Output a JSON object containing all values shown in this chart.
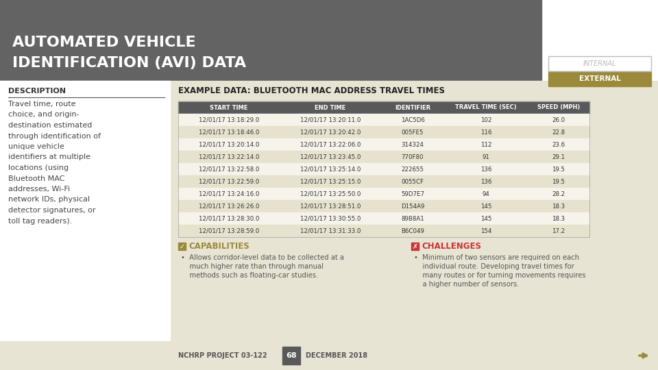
{
  "title_line1": "AUTOMATED VEHICLE",
  "title_line2": "IDENTIFICATION (AVI) DATA",
  "title_bg": "#636363",
  "title_fg": "#ffffff",
  "internal_label": "INTERNAL",
  "external_label": "EXTERNAL",
  "internal_bg": "#ffffff",
  "internal_fg": "#aaaaaa",
  "internal_border": "#cccccc",
  "external_bg": "#9a8a3a",
  "external_fg": "#ffffff",
  "content_bg": "#e8e4d4",
  "desc_bg": "#ffffff",
  "desc_title": "DESCRIPTION",
  "desc_title_color": "#333333",
  "desc_text_color": "#444444",
  "example_title": "EXAMPLE DATA: BLUETOOTH MAC ADDRESS TRAVEL TIMES",
  "table_header": [
    "START TIME",
    "END TIME",
    "IDENTIFIER",
    "TRAVEL TIME (SEC)",
    "SPEED (MPH)"
  ],
  "table_header_bg": "#595959",
  "table_header_fg": "#ffffff",
  "table_rows": [
    [
      "12/01/17 13:18:29.0",
      "12/01/17 13:20:11.0",
      "1AC5D6",
      "102",
      "26.0"
    ],
    [
      "12/01/17 13:18:46.0",
      "12/01/17 13:20:42.0",
      "005FE5",
      "116",
      "22.8"
    ],
    [
      "12/01/17 13:20:14.0",
      "12/01/17 13:22:06.0",
      "314324",
      "112",
      "23.6"
    ],
    [
      "12/01/17 13:22:14.0",
      "12/01/17 13:23:45.0",
      "770F80",
      "91",
      "29.1"
    ],
    [
      "12/01/17 13:22:58.0",
      "12/01/17 13:25:14.0",
      "222655",
      "136",
      "19.5"
    ],
    [
      "12/01/17 13:22:59.0",
      "12/01/17 13:25:15.0",
      "0055CF",
      "136",
      "19.5"
    ],
    [
      "12/01/17 13:24:16.0",
      "12/01/17 13:25:50.0",
      "59D7E7",
      "94",
      "28.2"
    ],
    [
      "12/01/17 13:26:26.0",
      "12/01/17 13:28:51.0",
      "D154A9",
      "145",
      "18.3"
    ],
    [
      "12/01/17 13:28:30.0",
      "12/01/17 13:30:55.0",
      "89B8A1",
      "145",
      "18.3"
    ],
    [
      "12/01/17 13:28:59.0",
      "12/01/17 13:31:33.0",
      "B6C049",
      "154",
      "17.2"
    ]
  ],
  "table_row_odd_bg": "#f5f3ea",
  "table_row_even_bg": "#e6e2ce",
  "table_text_color": "#333333",
  "table_border_color": "#cccccc",
  "capabilities_title": "CAPABILITIES",
  "capabilities_icon_color": "#9a8a3a",
  "capabilities_text_lines": [
    "Allows corridor-level data to be collected at a",
    "much higher rate than through manual",
    "methods such as floating-car studies."
  ],
  "challenges_title": "CHALLENGES",
  "challenges_icon_color": "#cc3333",
  "challenges_text_lines": [
    "Minimum of two sensors are required on each",
    "individual route. Developing travel times for",
    "many routes or for turning movements requires",
    "a higher number of sensors."
  ],
  "footer_project": "NCHRP PROJECT 03-122",
  "footer_page": "68",
  "footer_page_bg": "#595959",
  "footer_page_fg": "#ffffff",
  "footer_date": "DECEMBER 2018",
  "footer_bg": "#e8e4d4",
  "footer_text_color": "#555555",
  "arrow_color": "#9a8a3a",
  "desc_lines": [
    "Travel time, route",
    "choice, and origin-",
    "destination estimated",
    "through identification of",
    "unique vehicle",
    "identifiers at multiple",
    "locations (using",
    "Bluetooth MAC",
    "addresses, Wi-Fi",
    "network IDs, physical",
    "detector signatures, or",
    "toll tag readers)."
  ]
}
